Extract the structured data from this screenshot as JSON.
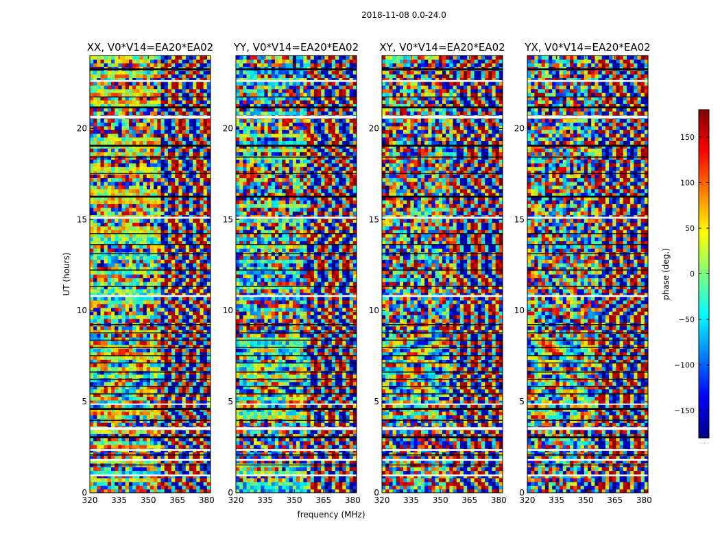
{
  "chart_data": {
    "type": "heatmap",
    "suptitle": "2018-11-08 0.0-24.0",
    "panels": [
      {
        "title": "XX, V0*V14=EA20*EA02",
        "polarization": "XX",
        "style": "xx"
      },
      {
        "title": "YY, V0*V14=EA20*EA02",
        "polarization": "YY",
        "style": "yy"
      },
      {
        "title": "XY, V0*V14=EA20*EA02",
        "polarization": "XY",
        "style": "cross"
      },
      {
        "title": "YX, V0*V14=EA20*EA02",
        "polarization": "YX",
        "style": "cross"
      }
    ],
    "xlabel": "frequency (MHz)",
    "ylabel": "UT (hours)",
    "xlim": [
      320,
      382
    ],
    "ylim": [
      0,
      24
    ],
    "xticks": [
      320,
      335,
      350,
      365,
      380
    ],
    "yticks": [
      0,
      5,
      10,
      15,
      20
    ],
    "colorbar": {
      "label": "phase (deg.)",
      "range": [
        -180,
        180
      ],
      "ticks": [
        150,
        100,
        50,
        0,
        -50,
        -100,
        -150
      ],
      "tick_labels": [
        "150",
        "100",
        "50",
        "0",
        "−50",
        "−100",
        "−150"
      ],
      "colormap": "jet",
      "colors": [
        "#00007f",
        "#0000ff",
        "#007fff",
        "#00ffff",
        "#7fff7f",
        "#ffff00",
        "#ff7f00",
        "#ff0000",
        "#7f0000"
      ],
      "dots": "......"
    },
    "flagged_white_hours": [
      [
        0.9,
        1.0
      ],
      [
        1.75,
        1.85
      ],
      [
        2.3,
        2.4
      ],
      [
        3.45,
        3.6
      ],
      [
        4.85,
        4.9
      ],
      [
        10.75,
        10.85
      ],
      [
        15.05,
        15.15
      ],
      [
        20.55,
        20.7
      ],
      [
        22.55,
        22.65
      ]
    ],
    "black_gap_hours": [
      [
        1.5,
        1.55
      ],
      [
        2.05,
        2.1
      ],
      [
        3.0,
        3.1
      ],
      [
        3.95,
        4.0
      ],
      [
        4.55,
        4.65
      ],
      [
        5.4,
        5.45
      ],
      [
        5.8,
        5.85
      ],
      [
        6.2,
        6.25
      ],
      [
        6.6,
        6.65
      ],
      [
        7.1,
        7.15
      ],
      [
        7.5,
        7.55
      ],
      [
        7.95,
        8.0
      ],
      [
        8.35,
        8.4
      ],
      [
        8.75,
        8.8
      ],
      [
        9.2,
        9.25
      ],
      [
        11.3,
        11.35
      ],
      [
        12.2,
        12.25
      ],
      [
        13.1,
        13.15
      ],
      [
        13.6,
        13.65
      ],
      [
        14.2,
        14.25
      ],
      [
        16.2,
        16.3
      ],
      [
        17.5,
        17.55
      ],
      [
        18.4,
        18.45
      ],
      [
        19.0,
        19.1
      ],
      [
        21.1,
        21.2
      ],
      [
        21.7,
        21.75
      ],
      [
        23.2,
        23.3
      ]
    ]
  }
}
